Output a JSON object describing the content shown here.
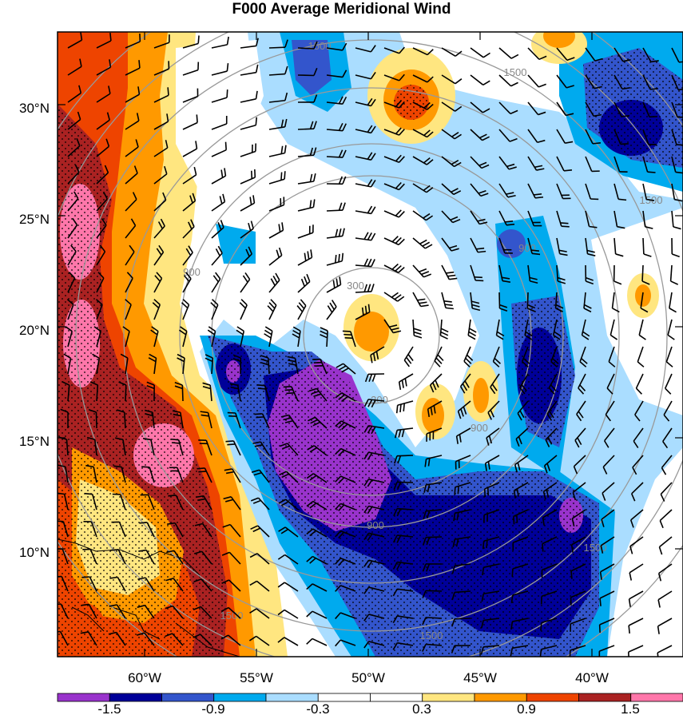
{
  "title": "F000 Average Meridional Wind",
  "map": {
    "lat_labels": [
      "30°N",
      "25°N",
      "20°N",
      "15°N",
      "10°N"
    ],
    "lon_labels": [
      "60°W",
      "55°W",
      "50°W",
      "45°W",
      "40°W"
    ],
    "ring_labels": [
      "300",
      "300",
      "900",
      "900",
      "900",
      "900",
      "1500",
      "1500",
      "1500",
      "1500",
      "1500",
      "1500"
    ]
  },
  "colorbar": {
    "labels": [
      "-1.5",
      "-0.9",
      "-0.3",
      "0.3",
      "0.9",
      "1.5"
    ],
    "colors": [
      "#9933cc",
      "#000099",
      "#3355cc",
      "#00aaee",
      "#aaddff",
      "#ffffff",
      "#ffffff",
      "#ffe680",
      "#ff9900",
      "#ee4400",
      "#aa2222",
      "#ff77aa"
    ]
  }
}
